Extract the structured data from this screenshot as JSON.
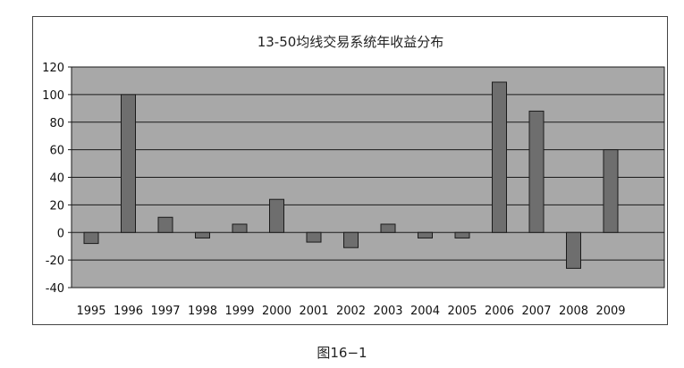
{
  "caption": "图16−1",
  "chart_data": {
    "type": "bar",
    "title": "13-50均线交易系统年收益分布",
    "xlabel": "",
    "ylabel": "",
    "categories": [
      "1995",
      "1996",
      "1997",
      "1998",
      "1999",
      "2000",
      "2001",
      "2002",
      "2003",
      "2004",
      "2005",
      "2006",
      "2007",
      "2008",
      "2009"
    ],
    "values": [
      -8,
      100,
      11,
      -4,
      6,
      24,
      -7,
      -11,
      6,
      -4,
      -4,
      109,
      88,
      -26,
      60
    ],
    "ylim": [
      -40,
      120
    ],
    "yticks": [
      -40,
      -20,
      0,
      20,
      40,
      60,
      80,
      100,
      120
    ],
    "grid": true,
    "legend": "none",
    "colors": {
      "plot_background": "#a8a8a8",
      "bar_fill": "#6e6e6e",
      "bar_stroke": "#1a1a1a",
      "grid": "#1a1a1a"
    }
  }
}
